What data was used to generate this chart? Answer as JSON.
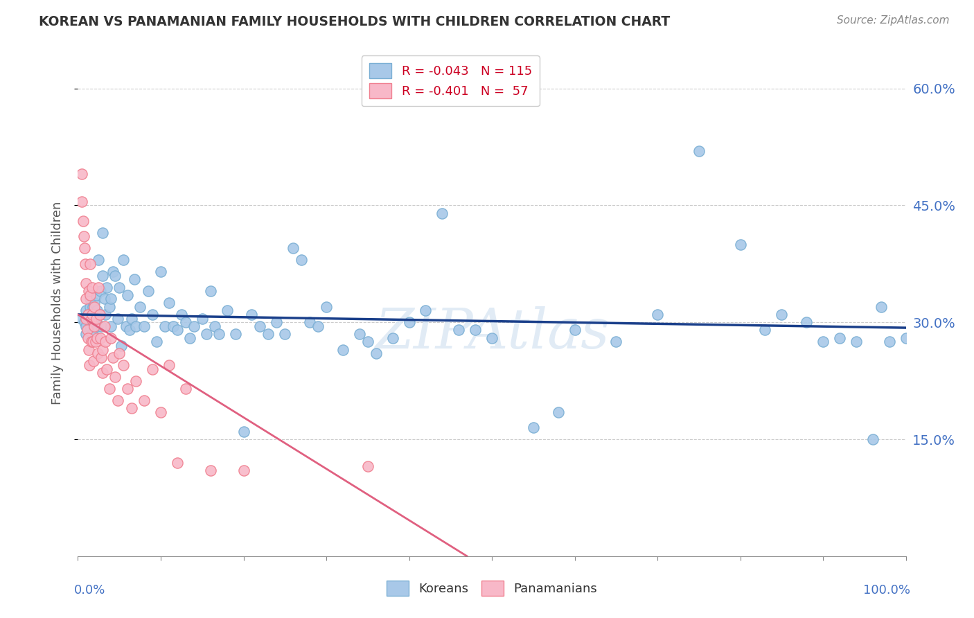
{
  "title": "KOREAN VS PANAMANIAN FAMILY HOUSEHOLDS WITH CHILDREN CORRELATION CHART",
  "source": "Source: ZipAtlas.com",
  "ylabel": "Family Households with Children",
  "watermark": "ZIPAtlas",
  "legend_label_korean": "R = -0.043   N = 115",
  "legend_label_pan": "R = -0.401   N =  57",
  "legend_bottom_korean": "Koreans",
  "legend_bottom_pan": "Panamanians",
  "xlim": [
    0,
    1
  ],
  "ylim": [
    0,
    0.65
  ],
  "yticks": [
    0.15,
    0.3,
    0.45,
    0.6
  ],
  "right_ytick_labels": [
    "15.0%",
    "30.0%",
    "45.0%",
    "60.0%"
  ],
  "xtick_positions": [
    0,
    0.1,
    0.2,
    0.3,
    0.4,
    0.5,
    0.6,
    0.7,
    0.8,
    0.9,
    1.0
  ],
  "korean_color": "#a8c8e8",
  "korean_edge_color": "#7bafd4",
  "panamanian_color": "#f8b8c8",
  "panamanian_edge_color": "#f08090",
  "korean_line_color": "#1a3f8a",
  "panamanian_line_color": "#e06080",
  "grid_color": "#cccccc",
  "bottom_spine_color": "#888888",
  "title_color": "#333333",
  "source_color": "#888888",
  "ylabel_color": "#555555",
  "right_label_color": "#4472c4",
  "xlabel_color": "#4472c4",
  "korean_line_x": [
    0,
    1.0
  ],
  "korean_line_y": [
    0.31,
    0.293
  ],
  "pan_line_x": [
    0,
    0.47
  ],
  "pan_line_y": [
    0.31,
    0.0
  ],
  "korean_x": [
    0.005,
    0.008,
    0.01,
    0.01,
    0.01,
    0.012,
    0.013,
    0.015,
    0.015,
    0.015,
    0.016,
    0.017,
    0.018,
    0.018,
    0.019,
    0.02,
    0.02,
    0.021,
    0.022,
    0.022,
    0.023,
    0.024,
    0.025,
    0.026,
    0.027,
    0.028,
    0.03,
    0.03,
    0.032,
    0.033,
    0.035,
    0.038,
    0.04,
    0.04,
    0.042,
    0.045,
    0.048,
    0.05,
    0.052,
    0.055,
    0.058,
    0.06,
    0.062,
    0.065,
    0.068,
    0.07,
    0.075,
    0.08,
    0.085,
    0.09,
    0.095,
    0.1,
    0.105,
    0.11,
    0.115,
    0.12,
    0.125,
    0.13,
    0.135,
    0.14,
    0.15,
    0.155,
    0.16,
    0.165,
    0.17,
    0.18,
    0.19,
    0.2,
    0.21,
    0.22,
    0.23,
    0.24,
    0.25,
    0.26,
    0.27,
    0.28,
    0.29,
    0.3,
    0.32,
    0.34,
    0.35,
    0.36,
    0.38,
    0.4,
    0.42,
    0.44,
    0.46,
    0.48,
    0.5,
    0.55,
    0.58,
    0.6,
    0.65,
    0.7,
    0.75,
    0.8,
    0.83,
    0.85,
    0.88,
    0.9,
    0.92,
    0.94,
    0.96,
    0.97,
    0.98,
    1.0
  ],
  "korean_y": [
    0.305,
    0.3,
    0.285,
    0.315,
    0.295,
    0.31,
    0.305,
    0.32,
    0.295,
    0.33,
    0.31,
    0.285,
    0.3,
    0.32,
    0.295,
    0.31,
    0.325,
    0.295,
    0.305,
    0.335,
    0.315,
    0.295,
    0.38,
    0.31,
    0.34,
    0.295,
    0.415,
    0.36,
    0.33,
    0.31,
    0.345,
    0.32,
    0.33,
    0.295,
    0.365,
    0.36,
    0.305,
    0.345,
    0.27,
    0.38,
    0.295,
    0.335,
    0.29,
    0.305,
    0.355,
    0.295,
    0.32,
    0.295,
    0.34,
    0.31,
    0.275,
    0.365,
    0.295,
    0.325,
    0.295,
    0.29,
    0.31,
    0.3,
    0.28,
    0.295,
    0.305,
    0.285,
    0.34,
    0.295,
    0.285,
    0.315,
    0.285,
    0.16,
    0.31,
    0.295,
    0.285,
    0.3,
    0.285,
    0.395,
    0.38,
    0.3,
    0.295,
    0.32,
    0.265,
    0.285,
    0.275,
    0.26,
    0.28,
    0.3,
    0.315,
    0.44,
    0.29,
    0.29,
    0.28,
    0.165,
    0.185,
    0.29,
    0.275,
    0.31,
    0.52,
    0.4,
    0.29,
    0.31,
    0.3,
    0.275,
    0.28,
    0.275,
    0.15,
    0.32,
    0.275,
    0.28
  ],
  "pan_x": [
    0.005,
    0.005,
    0.006,
    0.007,
    0.008,
    0.009,
    0.01,
    0.01,
    0.01,
    0.011,
    0.012,
    0.012,
    0.013,
    0.013,
    0.014,
    0.015,
    0.015,
    0.016,
    0.016,
    0.017,
    0.017,
    0.018,
    0.019,
    0.02,
    0.02,
    0.021,
    0.022,
    0.023,
    0.024,
    0.025,
    0.026,
    0.027,
    0.028,
    0.03,
    0.03,
    0.032,
    0.033,
    0.035,
    0.038,
    0.04,
    0.042,
    0.045,
    0.048,
    0.05,
    0.055,
    0.06,
    0.065,
    0.07,
    0.08,
    0.09,
    0.1,
    0.11,
    0.12,
    0.13,
    0.16,
    0.2,
    0.35
  ],
  "pan_y": [
    0.49,
    0.455,
    0.43,
    0.41,
    0.395,
    0.375,
    0.35,
    0.33,
    0.305,
    0.29,
    0.31,
    0.28,
    0.34,
    0.265,
    0.245,
    0.375,
    0.335,
    0.305,
    0.275,
    0.345,
    0.31,
    0.275,
    0.25,
    0.32,
    0.295,
    0.275,
    0.305,
    0.28,
    0.26,
    0.345,
    0.31,
    0.28,
    0.255,
    0.265,
    0.235,
    0.295,
    0.275,
    0.24,
    0.215,
    0.28,
    0.255,
    0.23,
    0.2,
    0.26,
    0.245,
    0.215,
    0.19,
    0.225,
    0.2,
    0.24,
    0.185,
    0.245,
    0.12,
    0.215,
    0.11,
    0.11,
    0.115
  ]
}
